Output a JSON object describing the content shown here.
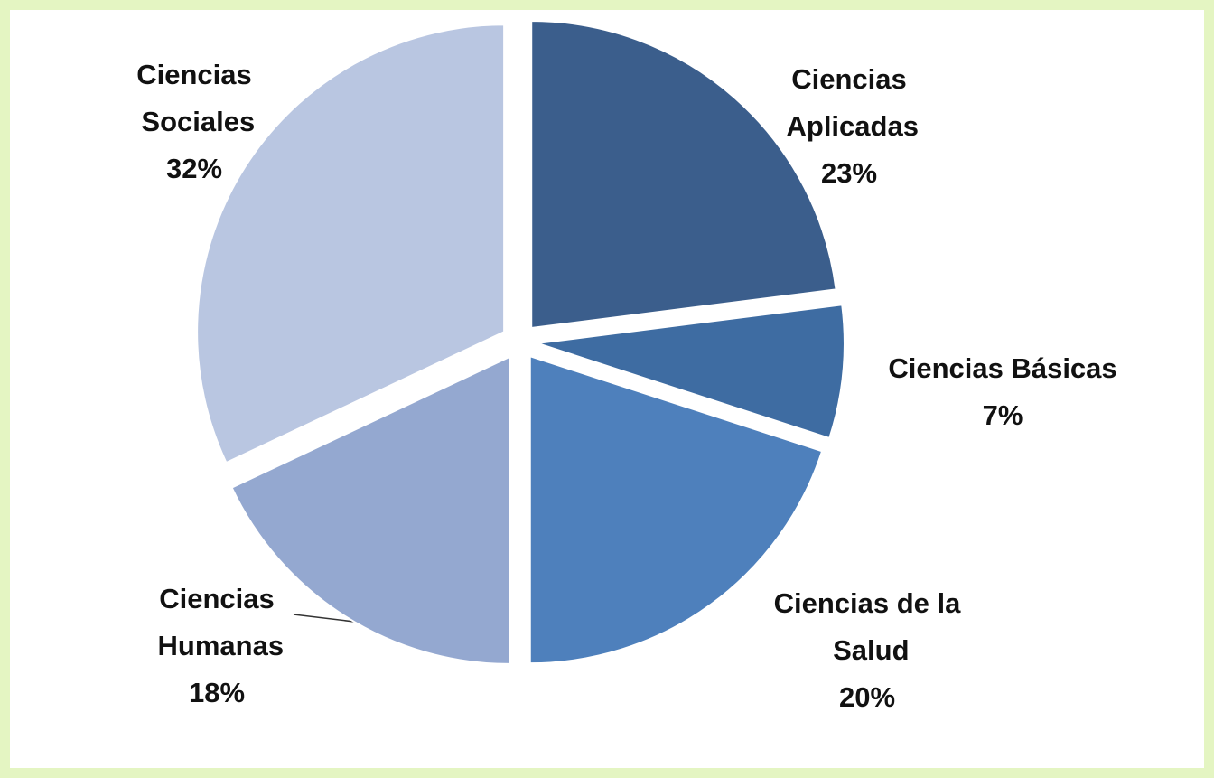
{
  "chart_data": {
    "type": "pie",
    "categories": [
      "Ciencias Aplicadas",
      "Ciencias Básicas",
      "Ciencias de la Salud",
      "Ciencias Humanas",
      "Ciencias Sociales"
    ],
    "values": [
      23,
      7,
      20,
      18,
      32
    ],
    "value_labels": [
      "23%",
      "7%",
      "20%",
      "18%",
      "32%"
    ],
    "colors": [
      "#3b5e8c",
      "#3e6ca2",
      "#4e80bc",
      "#94a8d0",
      "#b9c6e1"
    ]
  }
}
